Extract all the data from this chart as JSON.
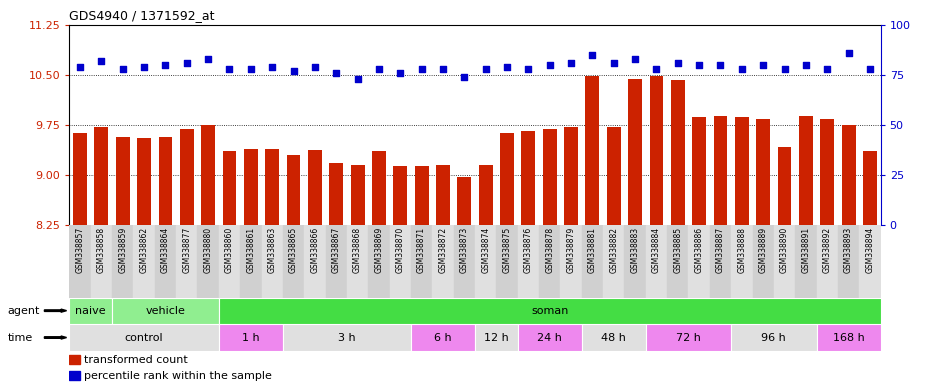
{
  "title": "GDS4940 / 1371592_at",
  "samples": [
    "GSM338857",
    "GSM338858",
    "GSM338859",
    "GSM338862",
    "GSM338864",
    "GSM338877",
    "GSM338880",
    "GSM338860",
    "GSM338861",
    "GSM338863",
    "GSM338865",
    "GSM338866",
    "GSM338867",
    "GSM338868",
    "GSM338869",
    "GSM338870",
    "GSM338871",
    "GSM338872",
    "GSM338873",
    "GSM338874",
    "GSM338875",
    "GSM338876",
    "GSM338878",
    "GSM338879",
    "GSM338881",
    "GSM338882",
    "GSM338883",
    "GSM338884",
    "GSM338885",
    "GSM338886",
    "GSM338887",
    "GSM338888",
    "GSM338889",
    "GSM338890",
    "GSM338891",
    "GSM338892",
    "GSM338893",
    "GSM338894"
  ],
  "bar_values": [
    9.63,
    9.72,
    9.57,
    9.55,
    9.57,
    9.68,
    9.75,
    9.35,
    9.38,
    9.38,
    9.3,
    9.37,
    9.18,
    9.15,
    9.35,
    9.13,
    9.13,
    9.15,
    8.97,
    9.15,
    9.63,
    9.65,
    9.68,
    9.72,
    10.49,
    9.72,
    10.44,
    10.49,
    10.42,
    9.87,
    9.88,
    9.87,
    9.83,
    9.42,
    9.88,
    9.83,
    9.75,
    9.35
  ],
  "dot_values": [
    79,
    82,
    78,
    79,
    80,
    81,
    83,
    78,
    78,
    79,
    77,
    79,
    76,
    73,
    78,
    76,
    78,
    78,
    74,
    78,
    79,
    78,
    80,
    81,
    85,
    81,
    83,
    78,
    81,
    80,
    80,
    78,
    80,
    78,
    80,
    78,
    86,
    78
  ],
  "ylim_left": [
    8.25,
    11.25
  ],
  "yticks_left": [
    8.25,
    9.0,
    9.75,
    10.5,
    11.25
  ],
  "ylim_right": [
    0,
    100
  ],
  "yticks_right": [
    0,
    25,
    50,
    75,
    100
  ],
  "bar_color": "#cc2200",
  "dot_color": "#0000cc",
  "agent_groups": [
    {
      "label": "naive",
      "start": 0,
      "end": 2,
      "color": "#90ee90"
    },
    {
      "label": "vehicle",
      "start": 2,
      "end": 7,
      "color": "#90ee90"
    },
    {
      "label": "soman",
      "start": 7,
      "end": 38,
      "color": "#44dd44"
    }
  ],
  "time_groups": [
    {
      "label": "control",
      "start": 0,
      "end": 7,
      "color": "#e0e0e0"
    },
    {
      "label": "1 h",
      "start": 7,
      "end": 10,
      "color": "#ee88ee"
    },
    {
      "label": "3 h",
      "start": 10,
      "end": 16,
      "color": "#e0e0e0"
    },
    {
      "label": "6 h",
      "start": 16,
      "end": 19,
      "color": "#ee88ee"
    },
    {
      "label": "12 h",
      "start": 19,
      "end": 21,
      "color": "#e0e0e0"
    },
    {
      "label": "24 h",
      "start": 21,
      "end": 24,
      "color": "#ee88ee"
    },
    {
      "label": "48 h",
      "start": 24,
      "end": 27,
      "color": "#e0e0e0"
    },
    {
      "label": "72 h",
      "start": 27,
      "end": 31,
      "color": "#ee88ee"
    },
    {
      "label": "96 h",
      "start": 31,
      "end": 35,
      "color": "#e0e0e0"
    },
    {
      "label": "168 h",
      "start": 35,
      "end": 38,
      "color": "#ee88ee"
    }
  ]
}
